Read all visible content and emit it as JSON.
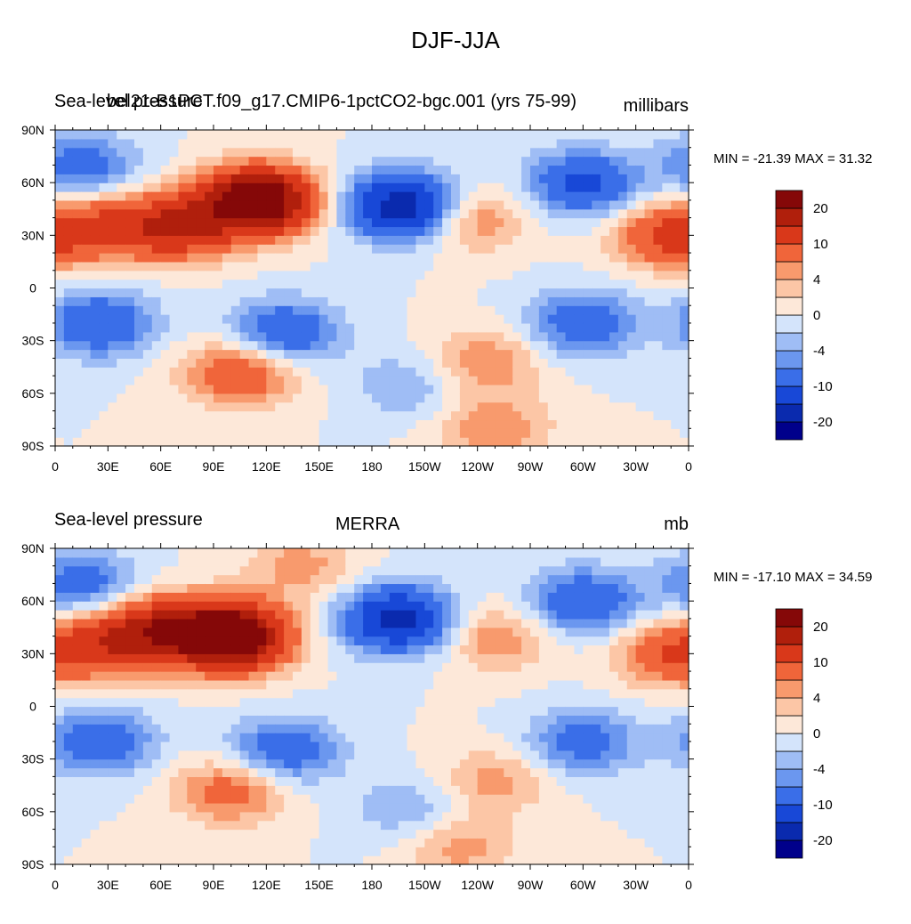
{
  "figure": {
    "title": "DJF-JJA"
  },
  "palette": [
    "#00008b",
    "#0a2aae",
    "#1848d7",
    "#3a6ee8",
    "#6b97ef",
    "#9fbdf5",
    "#d4e4fb",
    "#fde8d9",
    "#fcc6a6",
    "#f89a6d",
    "#f0653a",
    "#d9381a",
    "#b01f0c",
    "#850808"
  ],
  "colorbar_labels": [
    "20",
    "10",
    "4",
    "0",
    "-4",
    "-10",
    "-20"
  ],
  "xticks": [
    "0",
    "30E",
    "60E",
    "90E",
    "120E",
    "150E",
    "180",
    "150W",
    "120W",
    "90W",
    "60W",
    "30W",
    "0"
  ],
  "yticks": [
    "90N",
    "60N",
    "30N",
    "0",
    "30S",
    "60S",
    "90S"
  ],
  "chart_data": [
    {
      "type": "heatmap",
      "left_title": "Sea-level pressure",
      "center_title": "bel21-B1PCT.f09_g17.CMIP6-1pctCO2-bgc.001 (yrs 75-99)",
      "units": "millibars",
      "min": -21.39,
      "max": 31.32,
      "min_max_text": "MIN = -21.39 MAX =  31.32",
      "x_range": [
        0,
        360
      ],
      "y_range": [
        -90,
        90
      ],
      "contour_levels": [
        -20,
        -15,
        -10,
        -6,
        -4,
        -2,
        0,
        2,
        4,
        6,
        10,
        15,
        20
      ],
      "features": [
        {
          "lon": 115,
          "lat": 50,
          "value": 28
        },
        {
          "lon": 70,
          "lat": 35,
          "value": 14
        },
        {
          "lon": 30,
          "lat": 35,
          "value": 9
        },
        {
          "lon": 198,
          "lat": 47,
          "value": -19
        },
        {
          "lon": 300,
          "lat": 60,
          "value": -11
        },
        {
          "lon": 15,
          "lat": 70,
          "value": -8
        },
        {
          "lon": 350,
          "lat": 30,
          "value": 11
        },
        {
          "lon": 235,
          "lat": 40,
          "value": 7
        },
        {
          "lon": 105,
          "lat": -48,
          "value": 10
        },
        {
          "lon": 245,
          "lat": -42,
          "value": 6
        },
        {
          "lon": 130,
          "lat": -25,
          "value": -10
        },
        {
          "lon": 25,
          "lat": -20,
          "value": -10
        },
        {
          "lon": 300,
          "lat": -20,
          "value": -9
        },
        {
          "lon": 200,
          "lat": -55,
          "value": -4
        },
        {
          "lon": 250,
          "lat": -80,
          "value": 6
        }
      ]
    },
    {
      "type": "heatmap",
      "left_title": "Sea-level pressure",
      "center_title": "MERRA",
      "units": "mb",
      "min": -17.1,
      "max": 34.59,
      "min_max_text": "MIN = -17.10 MAX =  34.59",
      "x_range": [
        0,
        360
      ],
      "y_range": [
        -90,
        90
      ],
      "contour_levels": [
        -20,
        -15,
        -10,
        -6,
        -4,
        -2,
        0,
        2,
        4,
        6,
        10,
        15,
        20
      ],
      "features": [
        {
          "lon": 100,
          "lat": 40,
          "value": 29
        },
        {
          "lon": 60,
          "lat": 45,
          "value": 14
        },
        {
          "lon": 30,
          "lat": 35,
          "value": 10
        },
        {
          "lon": 195,
          "lat": 50,
          "value": -17
        },
        {
          "lon": 300,
          "lat": 60,
          "value": -10
        },
        {
          "lon": 15,
          "lat": 70,
          "value": -8
        },
        {
          "lon": 350,
          "lat": 30,
          "value": 9
        },
        {
          "lon": 250,
          "lat": 40,
          "value": 6
        },
        {
          "lon": 140,
          "lat": 80,
          "value": 5
        },
        {
          "lon": 100,
          "lat": -48,
          "value": 8
        },
        {
          "lon": 250,
          "lat": -42,
          "value": 5
        },
        {
          "lon": 130,
          "lat": -25,
          "value": -9
        },
        {
          "lon": 25,
          "lat": -20,
          "value": -9
        },
        {
          "lon": 300,
          "lat": -20,
          "value": -8
        },
        {
          "lon": 200,
          "lat": -58,
          "value": -4
        },
        {
          "lon": 230,
          "lat": -80,
          "value": 5
        }
      ]
    }
  ]
}
